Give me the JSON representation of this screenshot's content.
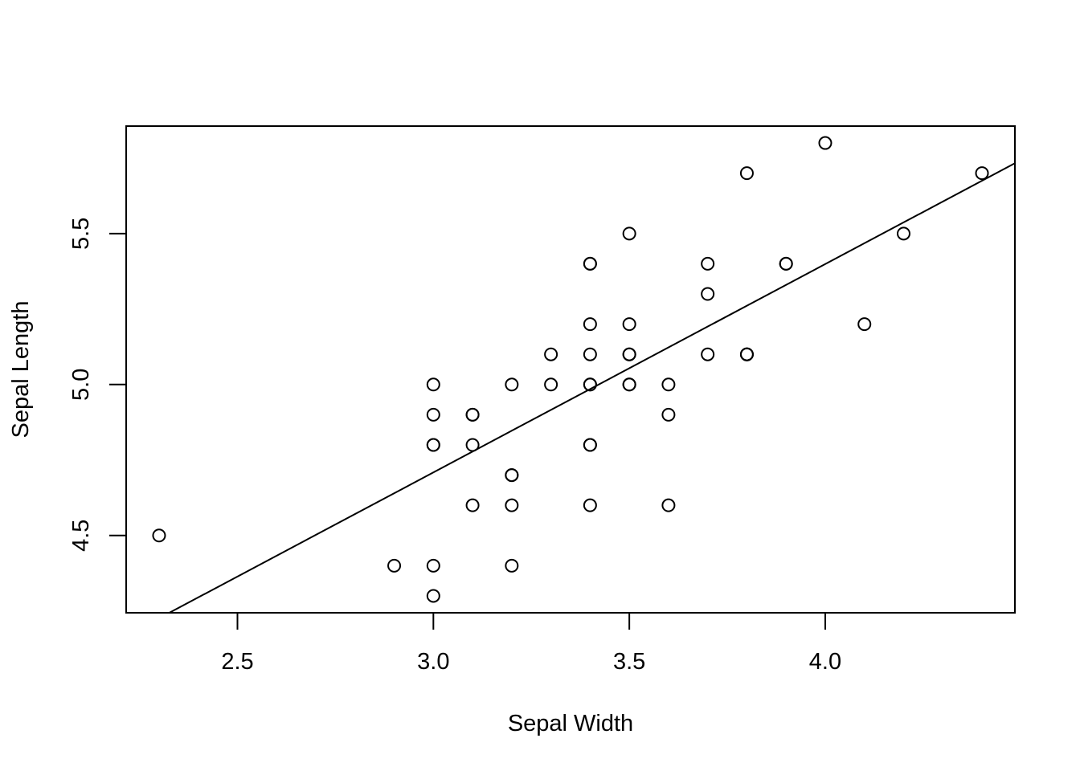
{
  "chart_data": {
    "type": "scatter",
    "title": "",
    "xlabel": "Sepal Width",
    "ylabel": "Sepal Length",
    "xlim": [
      2.216,
      4.484
    ],
    "ylim": [
      4.244,
      5.856
    ],
    "xticks": [
      "2.5",
      "3.0",
      "3.5",
      "4.0"
    ],
    "xtick_values": [
      2.5,
      3.0,
      3.5,
      4.0
    ],
    "yticks": [
      "4.5",
      "5.0",
      "5.5"
    ],
    "ytick_values": [
      4.5,
      5.0,
      5.5
    ],
    "grid": false,
    "legend": "none",
    "marker": "open-circle",
    "points": [
      {
        "x": 3.5,
        "y": 5.1
      },
      {
        "x": 3.0,
        "y": 4.9
      },
      {
        "x": 3.2,
        "y": 4.7
      },
      {
        "x": 3.1,
        "y": 4.6
      },
      {
        "x": 3.6,
        "y": 5.0
      },
      {
        "x": 3.9,
        "y": 5.4
      },
      {
        "x": 3.4,
        "y": 4.6
      },
      {
        "x": 3.4,
        "y": 5.0
      },
      {
        "x": 2.9,
        "y": 4.4
      },
      {
        "x": 3.1,
        "y": 4.9
      },
      {
        "x": 3.7,
        "y": 5.4
      },
      {
        "x": 3.4,
        "y": 4.8
      },
      {
        "x": 3.0,
        "y": 4.8
      },
      {
        "x": 3.0,
        "y": 4.3
      },
      {
        "x": 4.0,
        "y": 5.8
      },
      {
        "x": 4.4,
        "y": 5.7
      },
      {
        "x": 3.9,
        "y": 5.4
      },
      {
        "x": 3.5,
        "y": 5.1
      },
      {
        "x": 3.8,
        "y": 5.7
      },
      {
        "x": 3.8,
        "y": 5.1
      },
      {
        "x": 3.4,
        "y": 5.4
      },
      {
        "x": 3.7,
        "y": 5.1
      },
      {
        "x": 3.6,
        "y": 4.6
      },
      {
        "x": 3.3,
        "y": 5.1
      },
      {
        "x": 3.4,
        "y": 4.8
      },
      {
        "x": 3.0,
        "y": 5.0
      },
      {
        "x": 3.4,
        "y": 5.0
      },
      {
        "x": 3.5,
        "y": 5.2
      },
      {
        "x": 3.4,
        "y": 5.2
      },
      {
        "x": 3.2,
        "y": 4.7
      },
      {
        "x": 3.1,
        "y": 4.8
      },
      {
        "x": 3.4,
        "y": 5.4
      },
      {
        "x": 4.1,
        "y": 5.2
      },
      {
        "x": 4.2,
        "y": 5.5
      },
      {
        "x": 3.1,
        "y": 4.9
      },
      {
        "x": 3.2,
        "y": 5.0
      },
      {
        "x": 3.5,
        "y": 5.5
      },
      {
        "x": 3.6,
        "y": 4.9
      },
      {
        "x": 3.0,
        "y": 4.4
      },
      {
        "x": 3.4,
        "y": 5.1
      },
      {
        "x": 3.5,
        "y": 5.0
      },
      {
        "x": 2.3,
        "y": 4.5
      },
      {
        "x": 3.2,
        "y": 4.4
      },
      {
        "x": 3.5,
        "y": 5.0
      },
      {
        "x": 3.8,
        "y": 5.1
      },
      {
        "x": 3.0,
        "y": 4.8
      },
      {
        "x": 3.8,
        "y": 5.1
      },
      {
        "x": 3.2,
        "y": 4.6
      },
      {
        "x": 3.7,
        "y": 5.3
      },
      {
        "x": 3.3,
        "y": 5.0
      }
    ],
    "regression_line": {
      "intercept": 2.639,
      "slope": 0.69
    }
  }
}
